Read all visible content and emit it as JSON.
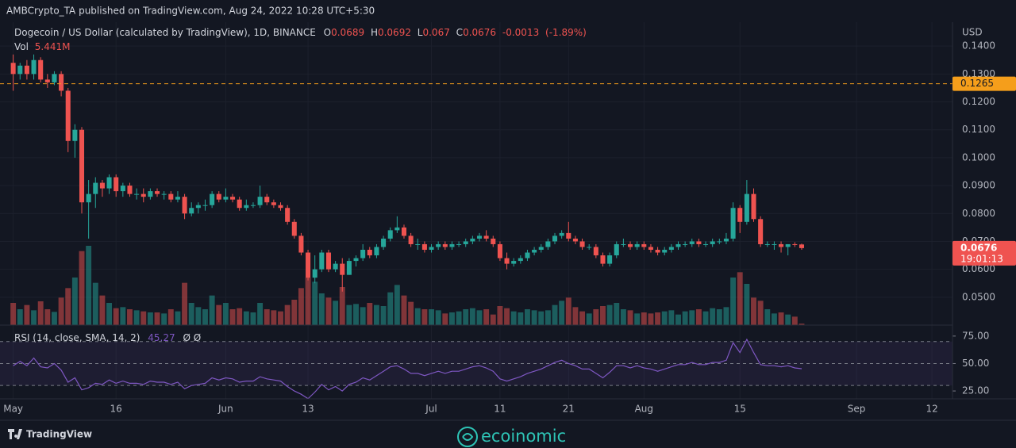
{
  "chart_data": {
    "type": "candlestick",
    "published": "AMBCrypto_TA published on TradingView.com, Aug 24, 2022 10:28 UTC+5:30",
    "title": "Dogecoin / US Dollar (calculated by TradingView), 1D, BINANCE",
    "ohlc_labels": [
      "O",
      "H",
      "L",
      "C"
    ],
    "change": -0.0013,
    "change_pct": {
      "value": -1.89,
      "label": "(-1.89%)"
    },
    "currency": "USD",
    "x": [
      "2022-05-01",
      "2022-05-02",
      "2022-05-03",
      "2022-05-04",
      "2022-05-05",
      "2022-05-06",
      "2022-05-07",
      "2022-05-08",
      "2022-05-09",
      "2022-05-10",
      "2022-05-11",
      "2022-05-12",
      "2022-05-13",
      "2022-05-14",
      "2022-05-15",
      "2022-05-16",
      "2022-05-17",
      "2022-05-18",
      "2022-05-19",
      "2022-05-20",
      "2022-05-21",
      "2022-05-22",
      "2022-05-23",
      "2022-05-24",
      "2022-05-25",
      "2022-05-26",
      "2022-05-27",
      "2022-05-28",
      "2022-05-29",
      "2022-05-30",
      "2022-05-31",
      "2022-06-01",
      "2022-06-02",
      "2022-06-03",
      "2022-06-04",
      "2022-06-05",
      "2022-06-06",
      "2022-06-07",
      "2022-06-08",
      "2022-06-09",
      "2022-06-10",
      "2022-06-11",
      "2022-06-12",
      "2022-06-13",
      "2022-06-14",
      "2022-06-15",
      "2022-06-16",
      "2022-06-17",
      "2022-06-18",
      "2022-06-19",
      "2022-06-20",
      "2022-06-21",
      "2022-06-22",
      "2022-06-23",
      "2022-06-24",
      "2022-06-25",
      "2022-06-26",
      "2022-06-27",
      "2022-06-28",
      "2022-06-29",
      "2022-06-30",
      "2022-07-01",
      "2022-07-02",
      "2022-07-03",
      "2022-07-04",
      "2022-07-05",
      "2022-07-06",
      "2022-07-07",
      "2022-07-08",
      "2022-07-09",
      "2022-07-10",
      "2022-07-11",
      "2022-07-12",
      "2022-07-13",
      "2022-07-14",
      "2022-07-15",
      "2022-07-16",
      "2022-07-17",
      "2022-07-18",
      "2022-07-19",
      "2022-07-20",
      "2022-07-21",
      "2022-07-22",
      "2022-07-23",
      "2022-07-24",
      "2022-07-25",
      "2022-07-26",
      "2022-07-27",
      "2022-07-28",
      "2022-07-29",
      "2022-07-30",
      "2022-07-31",
      "2022-08-01",
      "2022-08-02",
      "2022-08-03",
      "2022-08-04",
      "2022-08-05",
      "2022-08-06",
      "2022-08-07",
      "2022-08-08",
      "2022-08-09",
      "2022-08-10",
      "2022-08-11",
      "2022-08-12",
      "2022-08-13",
      "2022-08-14",
      "2022-08-15",
      "2022-08-16",
      "2022-08-17",
      "2022-08-18",
      "2022-08-19",
      "2022-08-20",
      "2022-08-21",
      "2022-08-22",
      "2022-08-23",
      "2022-08-24"
    ],
    "open": [
      0.134,
      0.13,
      0.133,
      0.13,
      0.135,
      0.128,
      0.127,
      0.13,
      0.124,
      0.106,
      0.11,
      0.084,
      0.087,
      0.091,
      0.089,
      0.093,
      0.088,
      0.09,
      0.087,
      0.087,
      0.086,
      0.088,
      0.087,
      0.087,
      0.085,
      0.086,
      0.08,
      0.082,
      0.083,
      0.083,
      0.087,
      0.085,
      0.086,
      0.085,
      0.082,
      0.083,
      0.083,
      0.086,
      0.084,
      0.083,
      0.082,
      0.077,
      0.072,
      0.066,
      0.057,
      0.06,
      0.066,
      0.06,
      0.062,
      0.058,
      0.063,
      0.064,
      0.067,
      0.065,
      0.068,
      0.071,
      0.074,
      0.075,
      0.072,
      0.069,
      0.069,
      0.067,
      0.068,
      0.069,
      0.068,
      0.069,
      0.069,
      0.07,
      0.071,
      0.072,
      0.071,
      0.069,
      0.064,
      0.062,
      0.063,
      0.064,
      0.066,
      0.067,
      0.068,
      0.07,
      0.072,
      0.073,
      0.071,
      0.07,
      0.068,
      0.068,
      0.065,
      0.062,
      0.065,
      0.069,
      0.069,
      0.068,
      0.069,
      0.068,
      0.067,
      0.066,
      0.067,
      0.068,
      0.069,
      0.069,
      0.07,
      0.069,
      0.069,
      0.07,
      0.07,
      0.071,
      0.082,
      0.077,
      0.087,
      0.078,
      0.069,
      0.069,
      0.069,
      0.068,
      0.069,
      0.0689
    ],
    "high": [
      0.137,
      0.134,
      0.135,
      0.137,
      0.136,
      0.13,
      0.131,
      0.131,
      0.125,
      0.112,
      0.111,
      0.092,
      0.093,
      0.092,
      0.094,
      0.094,
      0.091,
      0.091,
      0.089,
      0.089,
      0.089,
      0.089,
      0.088,
      0.088,
      0.088,
      0.087,
      0.084,
      0.084,
      0.085,
      0.088,
      0.088,
      0.089,
      0.087,
      0.086,
      0.085,
      0.084,
      0.09,
      0.087,
      0.085,
      0.084,
      0.083,
      0.078,
      0.073,
      0.067,
      0.065,
      0.067,
      0.067,
      0.063,
      0.064,
      0.064,
      0.065,
      0.069,
      0.068,
      0.069,
      0.072,
      0.075,
      0.079,
      0.076,
      0.073,
      0.071,
      0.07,
      0.069,
      0.07,
      0.07,
      0.07,
      0.07,
      0.071,
      0.072,
      0.073,
      0.074,
      0.072,
      0.07,
      0.066,
      0.064,
      0.065,
      0.067,
      0.068,
      0.069,
      0.071,
      0.073,
      0.074,
      0.077,
      0.072,
      0.071,
      0.069,
      0.069,
      0.066,
      0.066,
      0.07,
      0.071,
      0.07,
      0.07,
      0.07,
      0.069,
      0.068,
      0.068,
      0.069,
      0.07,
      0.07,
      0.071,
      0.071,
      0.07,
      0.071,
      0.071,
      0.073,
      0.084,
      0.083,
      0.092,
      0.089,
      0.079,
      0.07,
      0.07,
      0.07,
      0.069,
      0.0697,
      0.0692
    ],
    "low": [
      0.124,
      0.128,
      0.128,
      0.128,
      0.127,
      0.125,
      0.126,
      0.122,
      0.102,
      0.1,
      0.08,
      0.071,
      0.082,
      0.086,
      0.087,
      0.086,
      0.086,
      0.086,
      0.085,
      0.084,
      0.085,
      0.086,
      0.085,
      0.084,
      0.084,
      0.078,
      0.079,
      0.08,
      0.081,
      0.082,
      0.084,
      0.084,
      0.084,
      0.081,
      0.081,
      0.082,
      0.082,
      0.083,
      0.082,
      0.081,
      0.076,
      0.071,
      0.065,
      0.056,
      0.055,
      0.059,
      0.059,
      0.059,
      0.052,
      0.058,
      0.061,
      0.063,
      0.064,
      0.064,
      0.067,
      0.07,
      0.073,
      0.071,
      0.068,
      0.067,
      0.066,
      0.066,
      0.067,
      0.067,
      0.067,
      0.068,
      0.068,
      0.069,
      0.07,
      0.07,
      0.068,
      0.063,
      0.06,
      0.061,
      0.062,
      0.063,
      0.065,
      0.066,
      0.067,
      0.069,
      0.071,
      0.07,
      0.069,
      0.067,
      0.067,
      0.064,
      0.061,
      0.061,
      0.064,
      0.068,
      0.067,
      0.067,
      0.067,
      0.066,
      0.065,
      0.065,
      0.066,
      0.067,
      0.068,
      0.068,
      0.068,
      0.068,
      0.068,
      0.069,
      0.069,
      0.07,
      0.073,
      0.076,
      0.077,
      0.068,
      0.068,
      0.067,
      0.066,
      0.065,
      0.068,
      0.067
    ],
    "close": [
      0.13,
      0.133,
      0.13,
      0.135,
      0.128,
      0.127,
      0.13,
      0.124,
      0.106,
      0.11,
      0.084,
      0.087,
      0.091,
      0.089,
      0.093,
      0.088,
      0.09,
      0.087,
      0.087,
      0.086,
      0.088,
      0.087,
      0.087,
      0.085,
      0.086,
      0.08,
      0.082,
      0.083,
      0.083,
      0.087,
      0.085,
      0.086,
      0.085,
      0.082,
      0.083,
      0.083,
      0.086,
      0.084,
      0.083,
      0.082,
      0.077,
      0.072,
      0.066,
      0.057,
      0.06,
      0.066,
      0.06,
      0.062,
      0.058,
      0.063,
      0.064,
      0.067,
      0.065,
      0.068,
      0.071,
      0.074,
      0.075,
      0.072,
      0.069,
      0.069,
      0.067,
      0.068,
      0.069,
      0.068,
      0.069,
      0.069,
      0.07,
      0.071,
      0.072,
      0.071,
      0.069,
      0.064,
      0.062,
      0.063,
      0.064,
      0.066,
      0.067,
      0.068,
      0.07,
      0.072,
      0.073,
      0.071,
      0.07,
      0.068,
      0.068,
      0.065,
      0.062,
      0.065,
      0.069,
      0.069,
      0.068,
      0.069,
      0.068,
      0.067,
      0.066,
      0.067,
      0.068,
      0.069,
      0.069,
      0.07,
      0.069,
      0.069,
      0.07,
      0.07,
      0.071,
      0.082,
      0.077,
      0.087,
      0.078,
      0.069,
      0.069,
      0.069,
      0.068,
      0.069,
      0.0689,
      0.0676
    ],
    "up_color": "#26a69a",
    "down_color": "#ef5350",
    "xlim": [
      "2022-04-30",
      "2022-09-15"
    ],
    "xticks": [
      {
        "value": "2022-05-01",
        "label": "May"
      },
      {
        "value": "2022-05-16",
        "label": "16"
      },
      {
        "value": "2022-06-01",
        "label": "Jun"
      },
      {
        "value": "2022-06-13",
        "label": "13"
      },
      {
        "value": "2022-07-01",
        "label": "Jul"
      },
      {
        "value": "2022-07-11",
        "label": "11"
      },
      {
        "value": "2022-07-21",
        "label": "21"
      },
      {
        "value": "2022-08-01",
        "label": "Aug"
      },
      {
        "value": "2022-08-15",
        "label": "15"
      },
      {
        "value": "2022-09-01",
        "label": "Sep"
      },
      {
        "value": "2022-09-12",
        "label": "12"
      }
    ],
    "ylim": [
      0.04,
      0.148
    ],
    "yticks": [
      {
        "value": 0.05,
        "label": "0.0500"
      },
      {
        "value": 0.06,
        "label": "0.0600"
      },
      {
        "value": 0.07,
        "label": "0.0700"
      },
      {
        "value": 0.08,
        "label": "0.0800"
      },
      {
        "value": 0.09,
        "label": "0.0900"
      },
      {
        "value": 0.1,
        "label": "0.1000"
      },
      {
        "value": 0.11,
        "label": "0.1100"
      },
      {
        "value": 0.12,
        "label": "0.1200"
      },
      {
        "value": 0.13,
        "label": "0.1300"
      },
      {
        "value": 0.14,
        "label": "0.1400"
      }
    ],
    "grid": true,
    "hline": {
      "value": 0.1265,
      "color": "#f59e1b"
    },
    "countdown": "19:01:13",
    "volume": {
      "name": "Vol",
      "last_label": "5.441M",
      "values": [
        84,
        60,
        76,
        56,
        90,
        60,
        50,
        104,
        140,
        180,
        280,
        300,
        160,
        112,
        84,
        64,
        68,
        60,
        56,
        52,
        48,
        48,
        44,
        60,
        52,
        160,
        84,
        68,
        60,
        112,
        76,
        84,
        60,
        64,
        52,
        48,
        84,
        60,
        56,
        52,
        76,
        96,
        140,
        180,
        164,
        120,
        104,
        92,
        144,
        76,
        80,
        68,
        84,
        76,
        72,
        124,
        152,
        112,
        88,
        64,
        60,
        60,
        56,
        44,
        48,
        52,
        60,
        64,
        56,
        60,
        40,
        72,
        64,
        52,
        48,
        60,
        56,
        52,
        56,
        76,
        92,
        104,
        68,
        52,
        44,
        60,
        72,
        76,
        84,
        60,
        56,
        44,
        48,
        44,
        48,
        52,
        56,
        40,
        52,
        56,
        60,
        52,
        64,
        60,
        68,
        180,
        200,
        156,
        104,
        92,
        60,
        44,
        48,
        40,
        32,
        5.441
      ]
    },
    "rsi": {
      "name": "RSI (14, close, SMA, 14, 2)",
      "extra": "Ø  Ø",
      "color": "#7e57c2",
      "ylim": [
        20,
        85
      ],
      "yticks": [
        {
          "value": 25,
          "label": "25.00"
        },
        {
          "value": 50,
          "label": "50.00"
        },
        {
          "value": 75,
          "label": "75.00"
        }
      ],
      "band": [
        30,
        70
      ],
      "values": [
        48,
        52,
        48,
        55,
        47,
        46,
        50,
        44,
        33,
        37,
        26,
        28,
        32,
        31,
        35,
        32,
        34,
        32,
        32,
        31,
        34,
        33,
        33,
        31,
        33,
        27,
        30,
        31,
        32,
        37,
        35,
        37,
        36,
        33,
        34,
        34,
        38,
        36,
        35,
        34,
        29,
        25,
        22,
        18,
        24,
        31,
        26,
        29,
        25,
        31,
        33,
        37,
        35,
        39,
        43,
        47,
        48,
        45,
        41,
        41,
        39,
        41,
        43,
        41,
        43,
        43,
        45,
        47,
        48,
        46,
        43,
        36,
        34,
        36,
        38,
        41,
        43,
        45,
        48,
        51,
        53,
        50,
        48,
        45,
        45,
        41,
        37,
        42,
        48,
        48,
        46,
        48,
        46,
        45,
        43,
        45,
        47,
        49,
        49,
        51,
        49,
        49,
        51,
        51,
        53,
        69,
        60,
        72,
        60,
        49,
        48,
        48,
        47,
        48,
        46,
        45.27
      ]
    },
    "footer": {
      "brand": "TradingView",
      "watermark": "ecoinomic"
    }
  }
}
